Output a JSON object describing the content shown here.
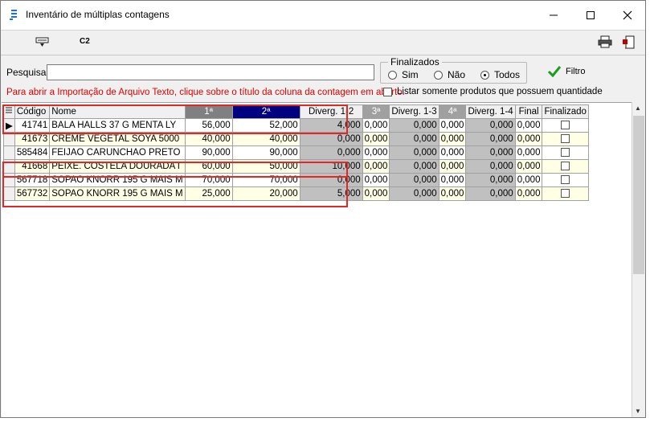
{
  "window": {
    "title": "Inventário de múltiplas contagens"
  },
  "toolbar": {
    "c2_label": "C2"
  },
  "search": {
    "label": "Pesquisa:",
    "value": "",
    "placeholder": ""
  },
  "finalizados": {
    "legend": "Finalizados",
    "options": [
      {
        "label": "Sim",
        "selected": false
      },
      {
        "label": "Não",
        "selected": false
      },
      {
        "label": "Todos",
        "selected": true
      }
    ]
  },
  "filtro": {
    "label": "Filtro"
  },
  "notice": "Para abrir a Importação de Arquivo Texto, clique sobre o título da coluna da contagem em aberto.",
  "only_with_qty": {
    "label": "Listar somente produtos que possuem quantidade",
    "checked": false
  },
  "grid": {
    "columns": [
      "Código",
      "Nome",
      "1ª",
      "2ª",
      "Diverg. 1-2",
      "3ª",
      "Diverg. 1-3",
      "4ª",
      "Diverg. 1-4",
      "Final",
      "Finalizado"
    ],
    "rows": [
      {
        "codigo": "41741",
        "nome": "BALA HALLS 37 G MENTA LY",
        "c1": "56,000",
        "c2": "52,000",
        "d12": "4,000",
        "c3": "0,000",
        "d13": "0,000",
        "c4": "0,000",
        "d14": "0,000",
        "final": "0,000",
        "finalizado": false,
        "current": true
      },
      {
        "codigo": "41673",
        "nome": "CREME VEGETAL SOYA 5000",
        "c1": "40,000",
        "c2": "40,000",
        "d12": "0,000",
        "c3": "0,000",
        "d13": "0,000",
        "c4": "0,000",
        "d14": "0,000",
        "final": "0,000",
        "finalizado": false,
        "current": false
      },
      {
        "codigo": "585484",
        "nome": "FEIJAO CARUNCHAO PRETO",
        "c1": "90,000",
        "c2": "90,000",
        "d12": "0,000",
        "c3": "0,000",
        "d13": "0,000",
        "c4": "0,000",
        "d14": "0,000",
        "final": "0,000",
        "finalizado": false,
        "current": false
      },
      {
        "codigo": "41668",
        "nome": "PEIXE. COSTELA DOURADA I",
        "c1": "60,000",
        "c2": "50,000",
        "d12": "10,000",
        "c3": "0,000",
        "d13": "0,000",
        "c4": "0,000",
        "d14": "0,000",
        "final": "0,000",
        "finalizado": false,
        "current": false
      },
      {
        "codigo": "567718",
        "nome": "SOPAO KNORR 195 G MAIS M",
        "c1": "70,000",
        "c2": "70,000",
        "d12": "0,000",
        "c3": "0,000",
        "d13": "0,000",
        "c4": "0,000",
        "d14": "0,000",
        "final": "0,000",
        "finalizado": false,
        "current": false
      },
      {
        "codigo": "567732",
        "nome": "SOPAO KNORR 195 G MAIS M",
        "c1": "25,000",
        "c2": "20,000",
        "d12": "5,000",
        "c3": "0,000",
        "d13": "0,000",
        "c4": "0,000",
        "d14": "0,000",
        "final": "0,000",
        "finalizado": false,
        "current": false
      }
    ]
  },
  "colors": {
    "highlight": "#e32626",
    "notice_text": "#e00000",
    "selected_header": "#000080",
    "count_header": "#808080",
    "divergence_cell": "#c0c0c0",
    "alt_row": "#ffffe6"
  },
  "icons": [
    "app-icon",
    "minimize-icon",
    "maximize-icon",
    "close-icon",
    "keyboard-icon",
    "printer-icon",
    "exit-icon",
    "checkmark-icon",
    "row-indicator-icon"
  ]
}
